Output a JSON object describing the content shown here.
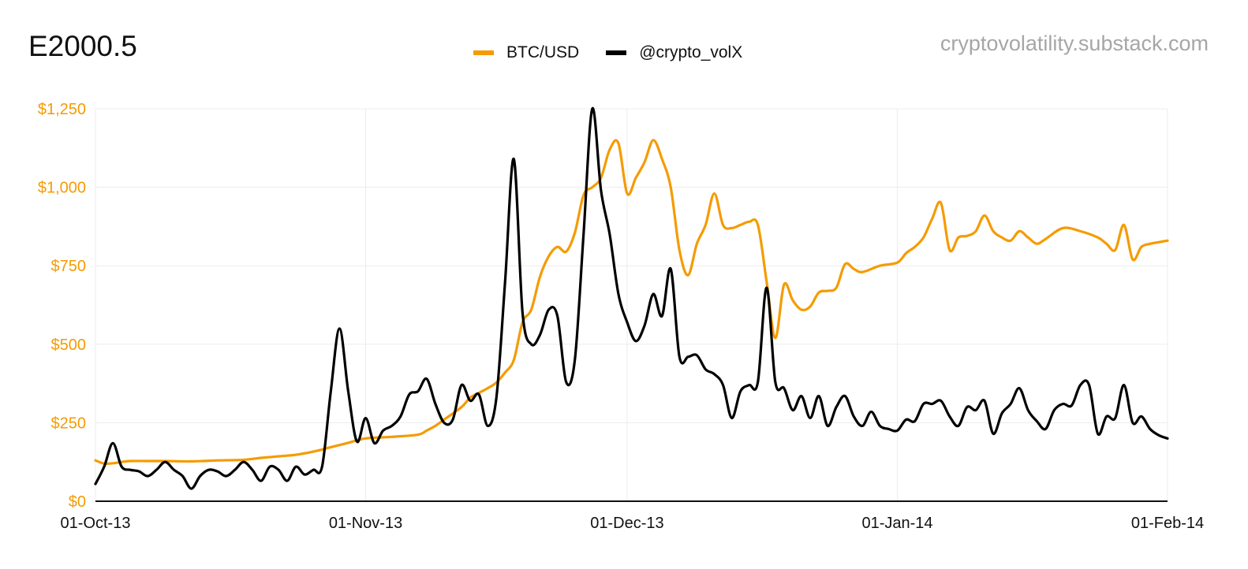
{
  "header": {
    "title": "E2000.5",
    "source": "cryptovolatility.substack.com"
  },
  "colors": {
    "btc": "#f59b00",
    "vol": "#000000",
    "grid": "#ececec",
    "axis": "#111111",
    "ytick": "#f59b00"
  },
  "chart_data": {
    "type": "line",
    "title": "E2000.5",
    "xlabel": "",
    "ylabel": "",
    "x_ticks": [
      "01-Oct-13",
      "01-Nov-13",
      "01-Dec-13",
      "01-Jan-14",
      "01-Feb-14"
    ],
    "y_ticks": [
      "$0",
      "$250",
      "$500",
      "$750",
      "$1,000",
      "$1,250"
    ],
    "ylim": [
      0,
      1250
    ],
    "xlim": [
      "2013-10-01",
      "2014-02-01"
    ],
    "grid": true,
    "legend": "top-center",
    "series": [
      {
        "name": "BTC/USD",
        "color": "#f59b00",
        "points": [
          [
            "2013-10-01",
            130
          ],
          [
            "2013-10-02",
            120
          ],
          [
            "2013-10-03",
            121
          ],
          [
            "2013-10-04",
            125
          ],
          [
            "2013-10-05",
            128
          ],
          [
            "2013-10-07",
            128
          ],
          [
            "2013-10-09",
            128
          ],
          [
            "2013-10-12",
            127
          ],
          [
            "2013-10-15",
            130
          ],
          [
            "2013-10-18",
            132
          ],
          [
            "2013-10-20",
            138
          ],
          [
            "2013-10-22",
            143
          ],
          [
            "2013-10-24",
            148
          ],
          [
            "2013-10-26",
            158
          ],
          [
            "2013-10-28",
            172
          ],
          [
            "2013-10-30",
            186
          ],
          [
            "2013-11-01",
            200
          ],
          [
            "2013-11-04",
            205
          ],
          [
            "2013-11-07",
            212
          ],
          [
            "2013-11-08",
            225
          ],
          [
            "2013-11-09",
            240
          ],
          [
            "2013-11-10",
            260
          ],
          [
            "2013-11-12",
            300
          ],
          [
            "2013-11-13",
            330
          ],
          [
            "2013-11-14",
            345
          ],
          [
            "2013-11-15",
            360
          ],
          [
            "2013-11-16",
            378
          ],
          [
            "2013-11-17",
            410
          ],
          [
            "2013-11-18",
            450
          ],
          [
            "2013-11-19",
            570
          ],
          [
            "2013-11-20",
            610
          ],
          [
            "2013-11-21",
            715
          ],
          [
            "2013-11-22",
            780
          ],
          [
            "2013-11-23",
            810
          ],
          [
            "2013-11-24",
            795
          ],
          [
            "2013-11-25",
            855
          ],
          [
            "2013-11-26",
            975
          ],
          [
            "2013-11-27",
            1000
          ],
          [
            "2013-11-28",
            1030
          ],
          [
            "2013-11-29",
            1120
          ],
          [
            "2013-11-30",
            1140
          ],
          [
            "2013-12-01",
            980
          ],
          [
            "2013-12-02",
            1030
          ],
          [
            "2013-12-03",
            1080
          ],
          [
            "2013-12-04",
            1150
          ],
          [
            "2013-12-05",
            1090
          ],
          [
            "2013-12-06",
            1000
          ],
          [
            "2013-12-07",
            800
          ],
          [
            "2013-12-08",
            720
          ],
          [
            "2013-12-09",
            820
          ],
          [
            "2013-12-10",
            880
          ],
          [
            "2013-12-11",
            980
          ],
          [
            "2013-12-12",
            880
          ],
          [
            "2013-12-13",
            870
          ],
          [
            "2013-12-14",
            880
          ],
          [
            "2013-12-15",
            890
          ],
          [
            "2013-12-16",
            880
          ],
          [
            "2013-12-17",
            700
          ],
          [
            "2013-12-18",
            520
          ],
          [
            "2013-12-19",
            690
          ],
          [
            "2013-12-20",
            640
          ],
          [
            "2013-12-21",
            610
          ],
          [
            "2013-12-22",
            620
          ],
          [
            "2013-12-23",
            665
          ],
          [
            "2013-12-24",
            670
          ],
          [
            "2013-12-25",
            680
          ],
          [
            "2013-12-26",
            755
          ],
          [
            "2013-12-27",
            740
          ],
          [
            "2013-12-28",
            730
          ],
          [
            "2013-12-30",
            750
          ],
          [
            "2014-01-01",
            760
          ],
          [
            "2014-01-02",
            790
          ],
          [
            "2014-01-03",
            810
          ],
          [
            "2014-01-04",
            840
          ],
          [
            "2014-01-05",
            900
          ],
          [
            "2014-01-06",
            950
          ],
          [
            "2014-01-07",
            800
          ],
          [
            "2014-01-08",
            840
          ],
          [
            "2014-01-09",
            845
          ],
          [
            "2014-01-10",
            860
          ],
          [
            "2014-01-11",
            910
          ],
          [
            "2014-01-12",
            860
          ],
          [
            "2014-01-13",
            840
          ],
          [
            "2014-01-14",
            830
          ],
          [
            "2014-01-15",
            860
          ],
          [
            "2014-01-16",
            840
          ],
          [
            "2014-01-17",
            820
          ],
          [
            "2014-01-18",
            835
          ],
          [
            "2014-01-20",
            870
          ],
          [
            "2014-01-22",
            860
          ],
          [
            "2014-01-24",
            840
          ],
          [
            "2014-01-25",
            820
          ],
          [
            "2014-01-26",
            800
          ],
          [
            "2014-01-27",
            880
          ],
          [
            "2014-01-28",
            770
          ],
          [
            "2014-01-29",
            810
          ],
          [
            "2014-01-30",
            820
          ],
          [
            "2014-01-31",
            825
          ],
          [
            "2014-02-01",
            830
          ]
        ]
      },
      {
        "name": "@crypto_volX",
        "color": "#000000",
        "points": [
          [
            "2013-10-01",
            55
          ],
          [
            "2013-10-02",
            110
          ],
          [
            "2013-10-03",
            185
          ],
          [
            "2013-10-04",
            110
          ],
          [
            "2013-10-05",
            100
          ],
          [
            "2013-10-06",
            95
          ],
          [
            "2013-10-07",
            80
          ],
          [
            "2013-10-08",
            100
          ],
          [
            "2013-10-09",
            125
          ],
          [
            "2013-10-10",
            100
          ],
          [
            "2013-10-11",
            80
          ],
          [
            "2013-10-12",
            40
          ],
          [
            "2013-10-13",
            80
          ],
          [
            "2013-10-14",
            100
          ],
          [
            "2013-10-15",
            95
          ],
          [
            "2013-10-16",
            80
          ],
          [
            "2013-10-17",
            100
          ],
          [
            "2013-10-18",
            125
          ],
          [
            "2013-10-19",
            100
          ],
          [
            "2013-10-20",
            65
          ],
          [
            "2013-10-21",
            110
          ],
          [
            "2013-10-22",
            100
          ],
          [
            "2013-10-23",
            65
          ],
          [
            "2013-10-24",
            110
          ],
          [
            "2013-10-25",
            85
          ],
          [
            "2013-10-26",
            100
          ],
          [
            "2013-10-27",
            110
          ],
          [
            "2013-10-28",
            350
          ],
          [
            "2013-10-29",
            550
          ],
          [
            "2013-10-30",
            350
          ],
          [
            "2013-10-31",
            190
          ],
          [
            "2013-11-01",
            265
          ],
          [
            "2013-11-02",
            185
          ],
          [
            "2013-11-03",
            225
          ],
          [
            "2013-11-04",
            240
          ],
          [
            "2013-11-05",
            270
          ],
          [
            "2013-11-06",
            340
          ],
          [
            "2013-11-07",
            350
          ],
          [
            "2013-11-08",
            390
          ],
          [
            "2013-11-09",
            310
          ],
          [
            "2013-11-10",
            250
          ],
          [
            "2013-11-11",
            260
          ],
          [
            "2013-11-12",
            370
          ],
          [
            "2013-11-13",
            320
          ],
          [
            "2013-11-14",
            340
          ],
          [
            "2013-11-15",
            240
          ],
          [
            "2013-11-16",
            330
          ],
          [
            "2013-11-17",
            700
          ],
          [
            "2013-11-18",
            1090
          ],
          [
            "2013-11-19",
            600
          ],
          [
            "2013-11-20",
            500
          ],
          [
            "2013-11-21",
            530
          ],
          [
            "2013-11-22",
            610
          ],
          [
            "2013-11-23",
            590
          ],
          [
            "2013-11-24",
            380
          ],
          [
            "2013-11-25",
            450
          ],
          [
            "2013-11-26",
            850
          ],
          [
            "2013-11-27",
            1250
          ],
          [
            "2013-11-28",
            990
          ],
          [
            "2013-11-29",
            850
          ],
          [
            "2013-11-30",
            660
          ],
          [
            "2013-12-01",
            570
          ],
          [
            "2013-12-02",
            510
          ],
          [
            "2013-12-03",
            560
          ],
          [
            "2013-12-04",
            660
          ],
          [
            "2013-12-05",
            590
          ],
          [
            "2013-12-06",
            740
          ],
          [
            "2013-12-07",
            460
          ],
          [
            "2013-12-08",
            460
          ],
          [
            "2013-12-09",
            465
          ],
          [
            "2013-12-10",
            420
          ],
          [
            "2013-12-11",
            405
          ],
          [
            "2013-12-12",
            370
          ],
          [
            "2013-12-13",
            265
          ],
          [
            "2013-12-14",
            350
          ],
          [
            "2013-12-15",
            370
          ],
          [
            "2013-12-16",
            380
          ],
          [
            "2013-12-17",
            680
          ],
          [
            "2013-12-18",
            380
          ],
          [
            "2013-12-19",
            360
          ],
          [
            "2013-12-20",
            290
          ],
          [
            "2013-12-21",
            335
          ],
          [
            "2013-12-22",
            265
          ],
          [
            "2013-12-23",
            335
          ],
          [
            "2013-12-24",
            240
          ],
          [
            "2013-12-25",
            300
          ],
          [
            "2013-12-26",
            335
          ],
          [
            "2013-12-27",
            270
          ],
          [
            "2013-12-28",
            240
          ],
          [
            "2013-12-29",
            285
          ],
          [
            "2013-12-30",
            240
          ],
          [
            "2013-12-31",
            230
          ],
          [
            "2014-01-01",
            225
          ],
          [
            "2014-01-02",
            260
          ],
          [
            "2014-01-03",
            255
          ],
          [
            "2014-01-04",
            310
          ],
          [
            "2014-01-05",
            310
          ],
          [
            "2014-01-06",
            320
          ],
          [
            "2014-01-07",
            270
          ],
          [
            "2014-01-08",
            240
          ],
          [
            "2014-01-09",
            300
          ],
          [
            "2014-01-10",
            290
          ],
          [
            "2014-01-11",
            320
          ],
          [
            "2014-01-12",
            215
          ],
          [
            "2014-01-13",
            280
          ],
          [
            "2014-01-14",
            310
          ],
          [
            "2014-01-15",
            360
          ],
          [
            "2014-01-16",
            290
          ],
          [
            "2014-01-17",
            255
          ],
          [
            "2014-01-18",
            230
          ],
          [
            "2014-01-19",
            290
          ],
          [
            "2014-01-20",
            310
          ],
          [
            "2014-01-21",
            305
          ],
          [
            "2014-01-22",
            370
          ],
          [
            "2014-01-23",
            370
          ],
          [
            "2014-01-24",
            215
          ],
          [
            "2014-01-25",
            270
          ],
          [
            "2014-01-26",
            265
          ],
          [
            "2014-01-27",
            370
          ],
          [
            "2014-01-28",
            250
          ],
          [
            "2014-01-29",
            270
          ],
          [
            "2014-01-30",
            230
          ],
          [
            "2014-01-31",
            210
          ],
          [
            "2014-02-01",
            200
          ]
        ]
      }
    ]
  }
}
